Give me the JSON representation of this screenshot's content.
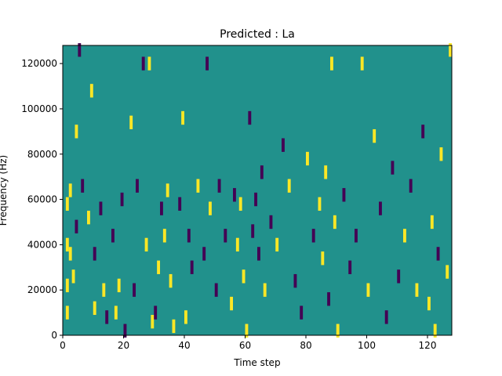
{
  "chart_data": {
    "type": "heatmap",
    "title": "Predicted : La",
    "xlabel": "Time step",
    "ylabel": "Frequency (Hz)",
    "xlim": [
      0,
      128
    ],
    "ylim": [
      0,
      128000
    ],
    "x_ticks": [
      0,
      20,
      40,
      60,
      80,
      100,
      120
    ],
    "y_ticks": [
      0,
      20000,
      40000,
      60000,
      80000,
      100000,
      120000
    ],
    "x_tick_labels": [
      "0",
      "20",
      "40",
      "60",
      "80",
      "100",
      "120"
    ],
    "y_tick_labels": [
      "0",
      "20000",
      "40000",
      "60000",
      "80000",
      "100000",
      "120000"
    ],
    "grid": false,
    "legend": "none",
    "colormap": {
      "low": "#440154",
      "mid": "#21918c",
      "high": "#fde725"
    },
    "value_levels": [
      -1,
      0,
      1
    ],
    "background_value": 0,
    "approx_cells": [
      {
        "t": 1,
        "f": 10000,
        "v": 1
      },
      {
        "t": 1,
        "f": 22000,
        "v": 1
      },
      {
        "t": 1,
        "f": 40000,
        "v": 1
      },
      {
        "t": 1,
        "f": 58000,
        "v": 1
      },
      {
        "t": 2,
        "f": 36000,
        "v": 1
      },
      {
        "t": 2,
        "f": 64000,
        "v": 1
      },
      {
        "t": 3,
        "f": 26000,
        "v": 1
      },
      {
        "t": 4,
        "f": 48000,
        "v": -1
      },
      {
        "t": 4,
        "f": 90000,
        "v": 1
      },
      {
        "t": 5,
        "f": 126000,
        "v": -1
      },
      {
        "t": 6,
        "f": 66000,
        "v": -1
      },
      {
        "t": 8,
        "f": 52000,
        "v": 1
      },
      {
        "t": 9,
        "f": 108000,
        "v": 1
      },
      {
        "t": 10,
        "f": 36000,
        "v": -1
      },
      {
        "t": 10,
        "f": 12000,
        "v": 1
      },
      {
        "t": 12,
        "f": 56000,
        "v": -1
      },
      {
        "t": 13,
        "f": 20000,
        "v": 1
      },
      {
        "t": 14,
        "f": 8000,
        "v": -1
      },
      {
        "t": 16,
        "f": 44000,
        "v": -1
      },
      {
        "t": 17,
        "f": 10000,
        "v": 1
      },
      {
        "t": 18,
        "f": 22000,
        "v": 1
      },
      {
        "t": 19,
        "f": 60000,
        "v": -1
      },
      {
        "t": 20,
        "f": 2000,
        "v": -1
      },
      {
        "t": 22,
        "f": 94000,
        "v": 1
      },
      {
        "t": 23,
        "f": 20000,
        "v": -1
      },
      {
        "t": 24,
        "f": 66000,
        "v": -1
      },
      {
        "t": 26,
        "f": 120000,
        "v": -1
      },
      {
        "t": 27,
        "f": 40000,
        "v": 1
      },
      {
        "t": 28,
        "f": 120000,
        "v": 1
      },
      {
        "t": 29,
        "f": 6000,
        "v": 1
      },
      {
        "t": 30,
        "f": 10000,
        "v": -1
      },
      {
        "t": 31,
        "f": 30000,
        "v": 1
      },
      {
        "t": 32,
        "f": 56000,
        "v": -1
      },
      {
        "t": 33,
        "f": 44000,
        "v": 1
      },
      {
        "t": 34,
        "f": 64000,
        "v": 1
      },
      {
        "t": 35,
        "f": 24000,
        "v": 1
      },
      {
        "t": 36,
        "f": 4000,
        "v": 1
      },
      {
        "t": 38,
        "f": 58000,
        "v": -1
      },
      {
        "t": 39,
        "f": 96000,
        "v": 1
      },
      {
        "t": 40,
        "f": 8000,
        "v": 1
      },
      {
        "t": 41,
        "f": 44000,
        "v": -1
      },
      {
        "t": 42,
        "f": 30000,
        "v": -1
      },
      {
        "t": 44,
        "f": 66000,
        "v": 1
      },
      {
        "t": 46,
        "f": 36000,
        "v": -1
      },
      {
        "t": 47,
        "f": 120000,
        "v": -1
      },
      {
        "t": 48,
        "f": 56000,
        "v": 1
      },
      {
        "t": 50,
        "f": 20000,
        "v": -1
      },
      {
        "t": 51,
        "f": 66000,
        "v": -1
      },
      {
        "t": 53,
        "f": 44000,
        "v": -1
      },
      {
        "t": 55,
        "f": 14000,
        "v": 1
      },
      {
        "t": 56,
        "f": 62000,
        "v": -1
      },
      {
        "t": 57,
        "f": 40000,
        "v": 1
      },
      {
        "t": 58,
        "f": 58000,
        "v": 1
      },
      {
        "t": 59,
        "f": 26000,
        "v": 1
      },
      {
        "t": 60,
        "f": 2000,
        "v": 1
      },
      {
        "t": 61,
        "f": 96000,
        "v": -1
      },
      {
        "t": 62,
        "f": 46000,
        "v": -1
      },
      {
        "t": 63,
        "f": 60000,
        "v": -1
      },
      {
        "t": 64,
        "f": 36000,
        "v": -1
      },
      {
        "t": 65,
        "f": 72000,
        "v": -1
      },
      {
        "t": 66,
        "f": 20000,
        "v": 1
      },
      {
        "t": 68,
        "f": 50000,
        "v": -1
      },
      {
        "t": 70,
        "f": 40000,
        "v": 1
      },
      {
        "t": 72,
        "f": 84000,
        "v": -1
      },
      {
        "t": 74,
        "f": 66000,
        "v": 1
      },
      {
        "t": 76,
        "f": 24000,
        "v": -1
      },
      {
        "t": 78,
        "f": 10000,
        "v": -1
      },
      {
        "t": 80,
        "f": 78000,
        "v": 1
      },
      {
        "t": 82,
        "f": 44000,
        "v": -1
      },
      {
        "t": 84,
        "f": 58000,
        "v": 1
      },
      {
        "t": 85,
        "f": 34000,
        "v": 1
      },
      {
        "t": 86,
        "f": 72000,
        "v": 1
      },
      {
        "t": 87,
        "f": 16000,
        "v": -1
      },
      {
        "t": 88,
        "f": 120000,
        "v": 1
      },
      {
        "t": 89,
        "f": 50000,
        "v": 1
      },
      {
        "t": 90,
        "f": 2000,
        "v": 1
      },
      {
        "t": 92,
        "f": 62000,
        "v": -1
      },
      {
        "t": 94,
        "f": 30000,
        "v": -1
      },
      {
        "t": 96,
        "f": 44000,
        "v": -1
      },
      {
        "t": 98,
        "f": 120000,
        "v": 1
      },
      {
        "t": 100,
        "f": 20000,
        "v": 1
      },
      {
        "t": 102,
        "f": 88000,
        "v": 1
      },
      {
        "t": 104,
        "f": 56000,
        "v": -1
      },
      {
        "t": 106,
        "f": 8000,
        "v": -1
      },
      {
        "t": 108,
        "f": 74000,
        "v": -1
      },
      {
        "t": 110,
        "f": 26000,
        "v": -1
      },
      {
        "t": 112,
        "f": 44000,
        "v": 1
      },
      {
        "t": 114,
        "f": 66000,
        "v": -1
      },
      {
        "t": 116,
        "f": 20000,
        "v": 1
      },
      {
        "t": 118,
        "f": 90000,
        "v": -1
      },
      {
        "t": 120,
        "f": 14000,
        "v": 1
      },
      {
        "t": 121,
        "f": 50000,
        "v": 1
      },
      {
        "t": 122,
        "f": 2000,
        "v": 1
      },
      {
        "t": 123,
        "f": 36000,
        "v": -1
      },
      {
        "t": 124,
        "f": 80000,
        "v": 1
      },
      {
        "t": 126,
        "f": 28000,
        "v": 1
      },
      {
        "t": 127,
        "f": 126000,
        "v": 1
      }
    ]
  }
}
